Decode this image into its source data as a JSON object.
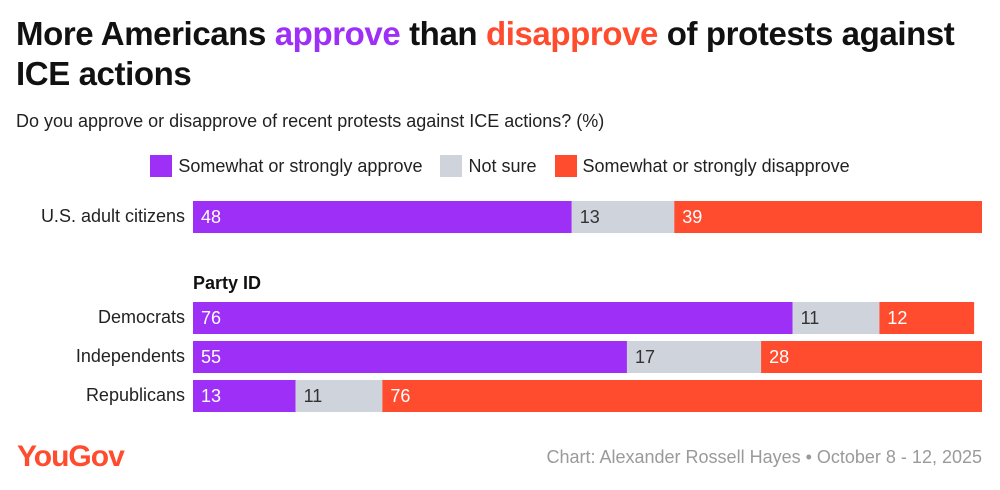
{
  "chart_data": {
    "type": "stacked-bar-horizontal",
    "title": [
      "More Americans",
      "approve",
      "than",
      "disapprove",
      "of protests against ICE actions"
    ],
    "subtitle": "Do you approve or disapprove of recent protests against ICE actions? (%)",
    "categories": [
      "U.S. adult citizens",
      "Democrats",
      "Independents",
      "Republicans"
    ],
    "group_label": "Party ID",
    "series": [
      {
        "name": "Somewhat or strongly approve",
        "color": "#9d2ff6",
        "values": [
          48,
          76,
          55,
          13
        ]
      },
      {
        "name": "Not sure",
        "color": "#cfd3dc",
        "values": [
          13,
          11,
          17,
          11
        ]
      },
      {
        "name": "Somewhat or strongly disapprove",
        "color": "#ff4b2e",
        "values": [
          39,
          12,
          28,
          76
        ]
      }
    ],
    "xlim": [
      0,
      100
    ],
    "logo": "YouGov",
    "source": "Chart: Alexander Rossell Hayes • October 8 - 12, 2025"
  }
}
